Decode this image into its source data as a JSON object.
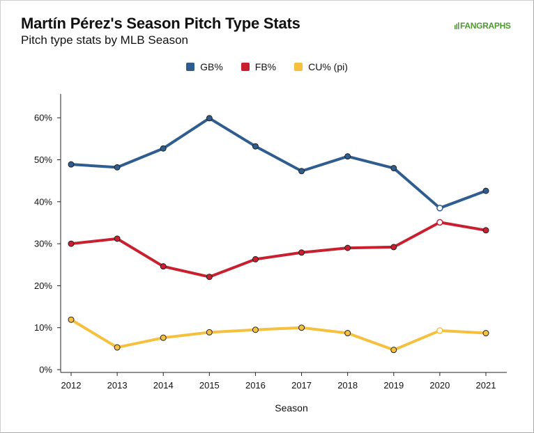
{
  "header": {
    "title": "Martín Pérez's Season Pitch Type Stats",
    "subtitle": "Pitch type stats by MLB Season",
    "logo_text": "FANGRAPHS"
  },
  "chart_data": {
    "type": "line",
    "title": "Martín Pérez's Season Pitch Type Stats",
    "subtitle": "Pitch type stats by MLB Season",
    "xlabel": "Season",
    "ylabel": "",
    "categories": [
      "2012",
      "2013",
      "2014",
      "2015",
      "2016",
      "2017",
      "2018",
      "2019",
      "2020",
      "2021"
    ],
    "ylim": [
      0,
      65
    ],
    "yticks": [
      "0%",
      "10%",
      "20%",
      "30%",
      "40%",
      "50%",
      "60%"
    ],
    "ytick_values": [
      0,
      10,
      20,
      30,
      40,
      50,
      60
    ],
    "grid": false,
    "legend_position": "top-center",
    "series": [
      {
        "name": "GB%",
        "color": "#2f5d8f",
        "values": [
          48.9,
          48.2,
          52.7,
          59.9,
          53.2,
          47.3,
          50.8,
          48.0,
          38.5,
          42.6
        ],
        "hollow": [
          false,
          false,
          false,
          false,
          false,
          false,
          false,
          false,
          true,
          false
        ]
      },
      {
        "name": "FB%",
        "color": "#c8202f",
        "values": [
          30.0,
          31.2,
          24.6,
          22.1,
          26.3,
          27.9,
          29.0,
          29.2,
          35.1,
          33.2
        ],
        "hollow": [
          false,
          false,
          false,
          false,
          false,
          false,
          false,
          false,
          true,
          false
        ]
      },
      {
        "name": "CU% (pi)",
        "color": "#f5c03e",
        "values": [
          11.9,
          5.3,
          7.6,
          8.9,
          9.5,
          10.0,
          8.7,
          4.7,
          9.3,
          8.7
        ],
        "hollow": [
          false,
          false,
          false,
          false,
          false,
          false,
          false,
          false,
          true,
          false
        ]
      }
    ]
  }
}
